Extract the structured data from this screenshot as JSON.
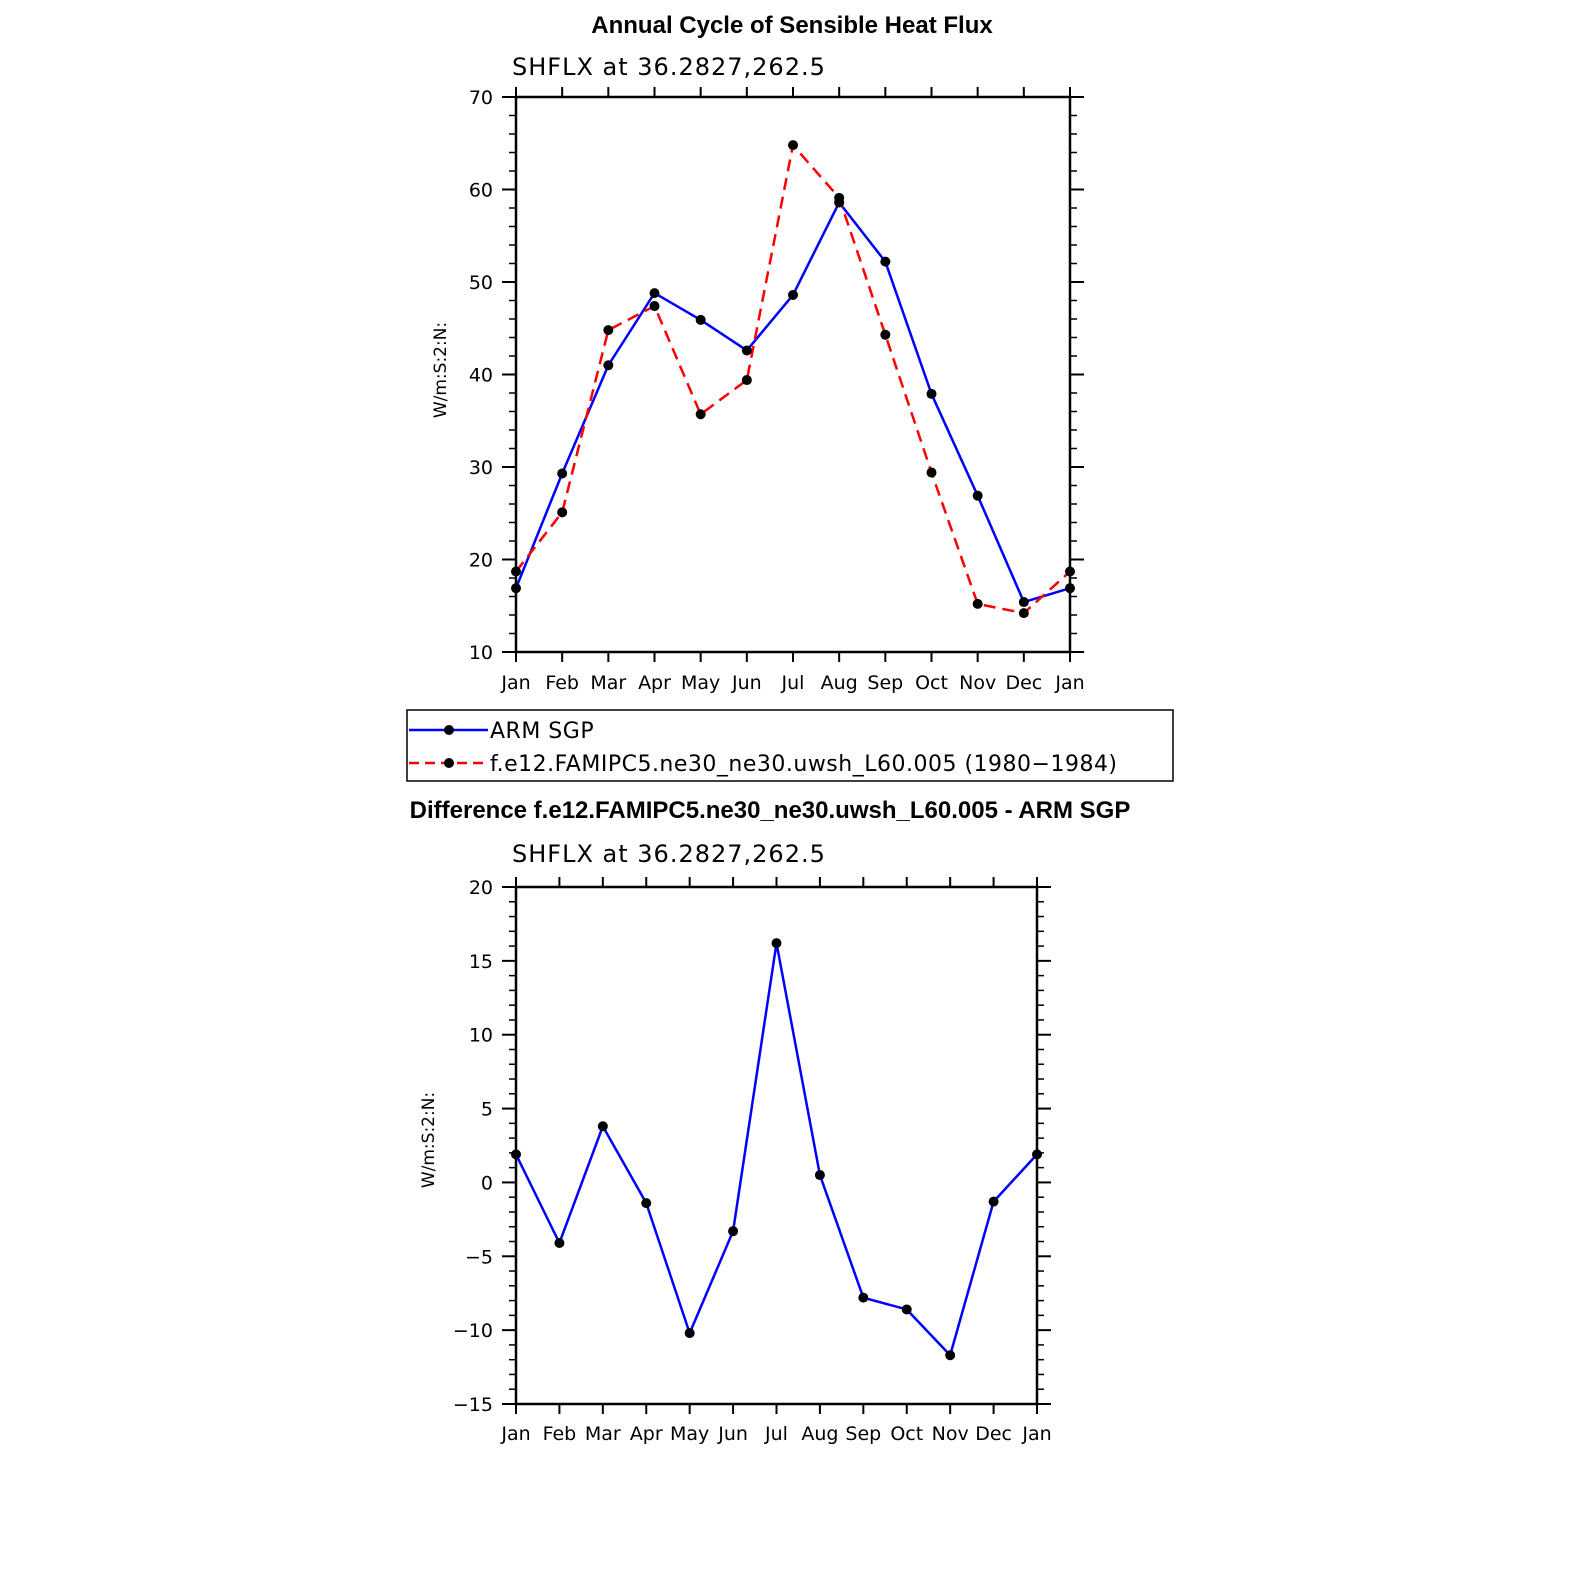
{
  "chart_data": [
    {
      "type": "line",
      "title": "Annual Cycle of Sensible Heat Flux",
      "subtitle": "SHFLX at 36.2827,262.5",
      "ylabel": "W/m:S:2:N:",
      "xlabel": "",
      "categories": [
        "Jan",
        "Feb",
        "Mar",
        "Apr",
        "May",
        "Jun",
        "Jul",
        "Aug",
        "Sep",
        "Oct",
        "Nov",
        "Dec",
        "Jan"
      ],
      "ylim": [
        10,
        70
      ],
      "yticks": [
        10,
        20,
        30,
        40,
        50,
        60,
        70
      ],
      "legend_position": "bottom",
      "series": [
        {
          "name": "ARM SGP",
          "color": "#0000ff",
          "dash": "solid",
          "values": [
            16.9,
            29.3,
            41.0,
            48.8,
            45.9,
            42.6,
            48.6,
            58.6,
            52.2,
            37.9,
            26.9,
            15.4,
            16.9
          ]
        },
        {
          "name": "f.e12.FAMIPC5.ne30_ne30.uwsh_L60.005 (1980−1984)",
          "color": "#ff0000",
          "dash": "dashed",
          "values": [
            18.7,
            25.1,
            44.8,
            47.4,
            35.7,
            39.4,
            64.8,
            59.1,
            44.3,
            29.4,
            15.2,
            14.2,
            18.7
          ]
        }
      ]
    },
    {
      "type": "line",
      "title": "Difference f.e12.FAMIPC5.ne30_ne30.uwsh_L60.005 - ARM SGP",
      "subtitle": "SHFLX at 36.2827,262.5",
      "ylabel": "W/m:S:2:N:",
      "xlabel": "",
      "categories": [
        "Jan",
        "Feb",
        "Mar",
        "Apr",
        "May",
        "Jun",
        "Jul",
        "Aug",
        "Sep",
        "Oct",
        "Nov",
        "Dec",
        "Jan"
      ],
      "ylim": [
        -15,
        20
      ],
      "yticks": [
        -15,
        -10,
        -5,
        0,
        5,
        10,
        15,
        20
      ],
      "series": [
        {
          "name": "Difference",
          "color": "#0000ff",
          "dash": "solid",
          "values": [
            1.9,
            -4.1,
            3.8,
            -1.4,
            -10.2,
            -3.3,
            16.2,
            0.5,
            -7.8,
            -8.6,
            -11.7,
            -1.3,
            1.9
          ]
        }
      ]
    }
  ]
}
